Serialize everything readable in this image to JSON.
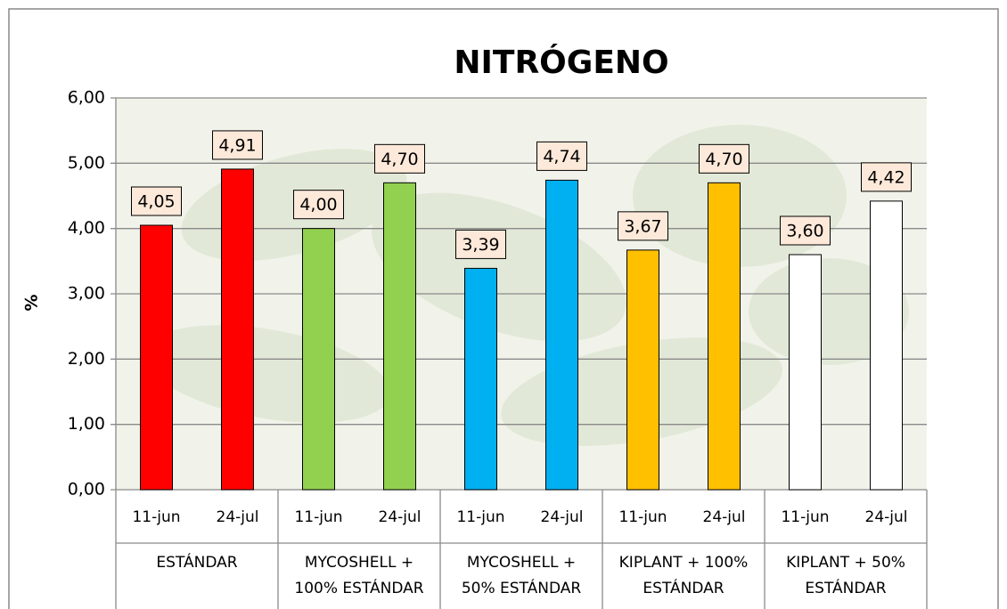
{
  "chart_data": {
    "type": "bar",
    "title": "NITRÓGENO",
    "y_label": "%",
    "categories": [
      "11-jun",
      "24-jul",
      "11-jun",
      "24-jul",
      "11-jun",
      "24-jul",
      "11-jun",
      "24-jul",
      "11-jun",
      "24-jul"
    ],
    "groups": [
      [
        "ESTÁNDAR"
      ],
      [
        "MYCOSHELL +",
        "100% ESTÁNDAR"
      ],
      [
        "MYCOSHELL +",
        "50% ESTÁNDAR"
      ],
      [
        "KIPLANT + 100%",
        "ESTÁNDAR"
      ],
      [
        "KIPLANT + 50%",
        "ESTÁNDAR"
      ]
    ],
    "values": [
      4.05,
      4.91,
      4.0,
      4.7,
      3.39,
      4.74,
      3.67,
      4.7,
      3.6,
      4.42
    ],
    "value_labels": [
      "4,05",
      "4,91",
      "4,00",
      "4,70",
      "3,39",
      "4,74",
      "3,67",
      "4,70",
      "3,60",
      "4,42"
    ],
    "colors": [
      "#ff0000",
      "#ff0000",
      "#92d050",
      "#92d050",
      "#00b0f0",
      "#00b0f0",
      "#ffc000",
      "#ffc000",
      "#ffffff",
      "#ffffff"
    ],
    "ylim": [
      0,
      6
    ],
    "yticks": [
      {
        "value": 0,
        "label": "0,00"
      },
      {
        "value": 1,
        "label": "1,00"
      },
      {
        "value": 2,
        "label": "2,00"
      },
      {
        "value": 3,
        "label": "3,00"
      },
      {
        "value": 4,
        "label": "4,00"
      },
      {
        "value": 5,
        "label": "5,00"
      },
      {
        "value": 6,
        "label": "6,00"
      }
    ],
    "grid": true
  }
}
